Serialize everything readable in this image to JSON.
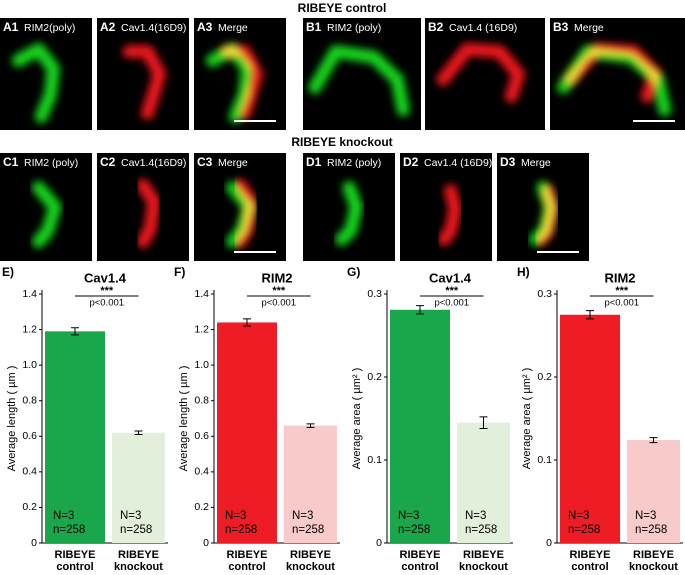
{
  "panels": [
    {
      "title": "RIBEYE control",
      "items": [
        {
          "id": "A1",
          "label": "RIM2(poly)"
        },
        {
          "id": "A2",
          "label": "Cav1.4(16D9)"
        },
        {
          "id": "A3",
          "label": "Merge"
        },
        {
          "id": "B1",
          "label": "RIM2 (poly)"
        },
        {
          "id": "B2",
          "label": "Cav1.4 (16D9)"
        },
        {
          "id": "B3",
          "label": "Merge"
        }
      ]
    },
    {
      "title": "RIBEYE knockout",
      "items": [
        {
          "id": "C1",
          "label": "RIM2 (poly)"
        },
        {
          "id": "C2",
          "label": "Cav1.4(16D9)"
        },
        {
          "id": "C3",
          "label": "Merge"
        },
        {
          "id": "D1",
          "label": "RIM2 (poly)"
        },
        {
          "id": "D2",
          "label": "Cav1.4 (16D9)"
        },
        {
          "id": "D3",
          "label": "Merge"
        }
      ]
    }
  ],
  "chart_data": [
    {
      "type": "bar",
      "panel": "E)",
      "title": "Cav1.4",
      "ylabel": "Average length ( µm )",
      "categories": [
        "RIBEYE control",
        "RIBEYE knockout"
      ],
      "values": [
        1.19,
        0.62
      ],
      "errors": [
        0.02,
        0.01
      ],
      "colors": [
        "#1aa64a",
        "#e2efda"
      ],
      "ylim": [
        0,
        1.4
      ],
      "yticks": [
        0,
        0.2,
        0.4,
        0.6,
        0.8,
        {
          "value": 1,
          "label": "1.0"
        },
        1.2,
        1.4
      ],
      "significance": "***",
      "p_value": "p<0.001",
      "bar_notes": [
        [
          "N=3",
          "n=258"
        ],
        [
          "N=3",
          "n=258"
        ]
      ]
    },
    {
      "type": "bar",
      "panel": "F)",
      "title": "RIM2",
      "ylabel": "Average length ( µm )",
      "categories": [
        "RIBEYE control",
        "RIBEYE knockout"
      ],
      "values": [
        1.24,
        0.66
      ],
      "errors": [
        0.02,
        0.01
      ],
      "colors": [
        "#ee1c24",
        "#f9caca"
      ],
      "ylim": [
        0,
        1.4
      ],
      "yticks": [
        0,
        0.2,
        0.4,
        0.6,
        0.8,
        {
          "value": 1,
          "label": "1.0"
        },
        1.2,
        1.4
      ],
      "significance": "***",
      "p_value": "p<0.001",
      "bar_notes": [
        [
          "N=3",
          "n=258"
        ],
        [
          "N=3",
          "n=258"
        ]
      ]
    },
    {
      "type": "bar",
      "panel": "G)",
      "title": "Cav1.4",
      "ylabel": "Average area ( µm² )",
      "categories": [
        "RIBEYE control",
        "RIBEYE knockout"
      ],
      "values": [
        0.281,
        0.145
      ],
      "errors": [
        0.005,
        0.007
      ],
      "colors": [
        "#1aa64a",
        "#e2efda"
      ],
      "ylim": [
        0,
        0.3
      ],
      "yticks": [
        0,
        0.1,
        0.2,
        0.3
      ],
      "significance": "***",
      "p_value": "p<0.001",
      "bar_notes": [
        [
          "N=3",
          "n=258"
        ],
        [
          "N=3",
          "n=258"
        ]
      ]
    },
    {
      "type": "bar",
      "panel": "H)",
      "title": "RIM2",
      "ylabel": "Average area ( µm² )",
      "categories": [
        "RIBEYE control",
        "RIBEYE knockout"
      ],
      "values": [
        0.275,
        0.124
      ],
      "errors": [
        0.005,
        0.003
      ],
      "colors": [
        "#ee1c24",
        "#f9caca"
      ],
      "ylim": [
        0,
        0.3
      ],
      "yticks": [
        0,
        0.1,
        0.2,
        0.3
      ],
      "significance": "***",
      "p_value": "p<0.001",
      "bar_notes": [
        [
          "N=3",
          "n=258"
        ],
        [
          "N=3",
          "n=258"
        ]
      ]
    }
  ]
}
